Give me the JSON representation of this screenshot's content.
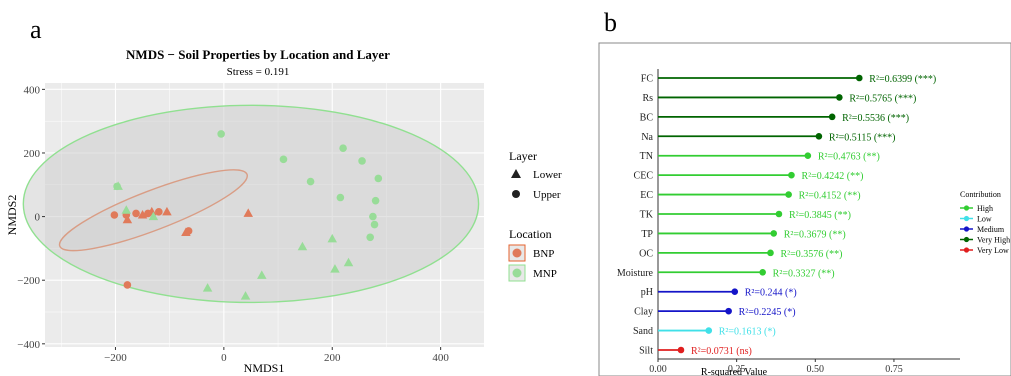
{
  "chart_data": [
    {
      "panel_label": "a",
      "type": "scatter",
      "title": "NMDS − Soil Properties by Location and Layer",
      "subtitle": "Stress = 0.191",
      "xlabel": "NMDS1",
      "ylabel": "NMDS2",
      "xlim": [
        -330,
        480
      ],
      "ylim": [
        -410,
        420
      ],
      "xticks": [
        -200,
        0,
        200,
        400
      ],
      "yticks": [
        -400,
        -200,
        0,
        200,
        400
      ],
      "background": "#ebebeb",
      "grid": true,
      "legend_position": "right",
      "shape_legend": {
        "title": "Layer",
        "items": [
          {
            "label": "Lower",
            "shape": "triangle"
          },
          {
            "label": "Upper",
            "shape": "circle"
          }
        ]
      },
      "color_legend": {
        "title": "Location",
        "items": [
          {
            "label": "BNP",
            "color": "#e07a5a"
          },
          {
            "label": "MNP",
            "color": "#98dc98"
          }
        ]
      },
      "ellipses": [
        {
          "group": "BNP",
          "center": [
            -130,
            20
          ],
          "radii": [
            185,
            62
          ],
          "angle_deg": -21,
          "stroke": "#e6622e",
          "fill": "rgba(215,215,215,0.55)"
        },
        {
          "group": "MNP",
          "center": [
            50,
            40
          ],
          "radii": [
            420,
            310
          ],
          "angle_deg": 0,
          "stroke": "#90e090",
          "fill": "rgba(205,205,205,0.55)"
        }
      ],
      "series": [
        {
          "name": "BNP",
          "layer": "Upper",
          "x": [
            -202,
            -180,
            -162,
            -140,
            -120,
            -65,
            -178
          ],
          "y": [
            5,
            5,
            10,
            10,
            15,
            -45,
            -215
          ]
        },
        {
          "name": "BNP",
          "layer": "Lower",
          "x": [
            -178,
            -150,
            -133,
            -105,
            -70,
            45
          ],
          "y": [
            -10,
            5,
            15,
            15,
            -50,
            10
          ]
        },
        {
          "name": "MNP",
          "layer": "Upper",
          "x": [
            -197,
            -5,
            110,
            220,
            255,
            285,
            160,
            215,
            280,
            275,
            278,
            270
          ],
          "y": [
            95,
            260,
            180,
            215,
            175,
            120,
            110,
            60,
            50,
            0,
            -25,
            -65
          ]
        },
        {
          "name": "MNP",
          "layer": "Lower",
          "x": [
            -195,
            -180,
            -130,
            -30,
            40,
            70,
            145,
            200,
            205,
            230
          ],
          "y": [
            95,
            20,
            0,
            -225,
            -250,
            -185,
            -95,
            -70,
            -165,
            -145
          ]
        }
      ]
    },
    {
      "panel_label": "b",
      "type": "lollipop",
      "xlabel": "R-squared Value",
      "xlim": [
        0,
        0.96
      ],
      "xticks": [
        0,
        0.25,
        0.5,
        0.75
      ],
      "tick_labels": [
        "0.00",
        "0.25",
        "0.50",
        "0.75"
      ],
      "categories": [
        "FC",
        "Rs",
        "BC",
        "Na",
        "TN",
        "CEC",
        "EC",
        "TK",
        "TP",
        "OC",
        "Moisture",
        "pH",
        "Clay",
        "Sand",
        "Silt"
      ],
      "values": [
        0.6399,
        0.5765,
        0.5536,
        0.5115,
        0.4763,
        0.4242,
        0.4152,
        0.3845,
        0.3679,
        0.3576,
        0.3327,
        0.244,
        0.2245,
        0.1613,
        0.0731
      ],
      "labels": [
        "R²=0.6399 (***)",
        "R²=0.5765 (***)",
        "R²=0.5536 (***)",
        "R²=0.5115 (***)",
        "R²=0.4763 (**)",
        "R²=0.4242 (**)",
        "R²=0.4152 (**)",
        "R²=0.3845 (**)",
        "R²=0.3679 (**)",
        "R²=0.3576 (**)",
        "R²=0.3327 (**)",
        "R²=0.244 (*)",
        "R²=0.2245 (*)",
        "R²=0.1613 (*)",
        "R²=0.0731 (ns)"
      ],
      "contribution": [
        "Very High",
        "Very High",
        "Very High",
        "Very High",
        "High",
        "High",
        "High",
        "High",
        "High",
        "High",
        "High",
        "Medium",
        "Medium",
        "Low",
        "Very Low"
      ],
      "legend": {
        "title": "Contribution",
        "position": "right",
        "items": [
          {
            "label": "High",
            "color": "#32cd32"
          },
          {
            "label": "Low",
            "color": "#40e0e8"
          },
          {
            "label": "Medium",
            "color": "#1414c8"
          },
          {
            "label": "Very High",
            "color": "#006400"
          },
          {
            "label": "Very Low",
            "color": "#e01e1e"
          }
        ]
      }
    }
  ]
}
